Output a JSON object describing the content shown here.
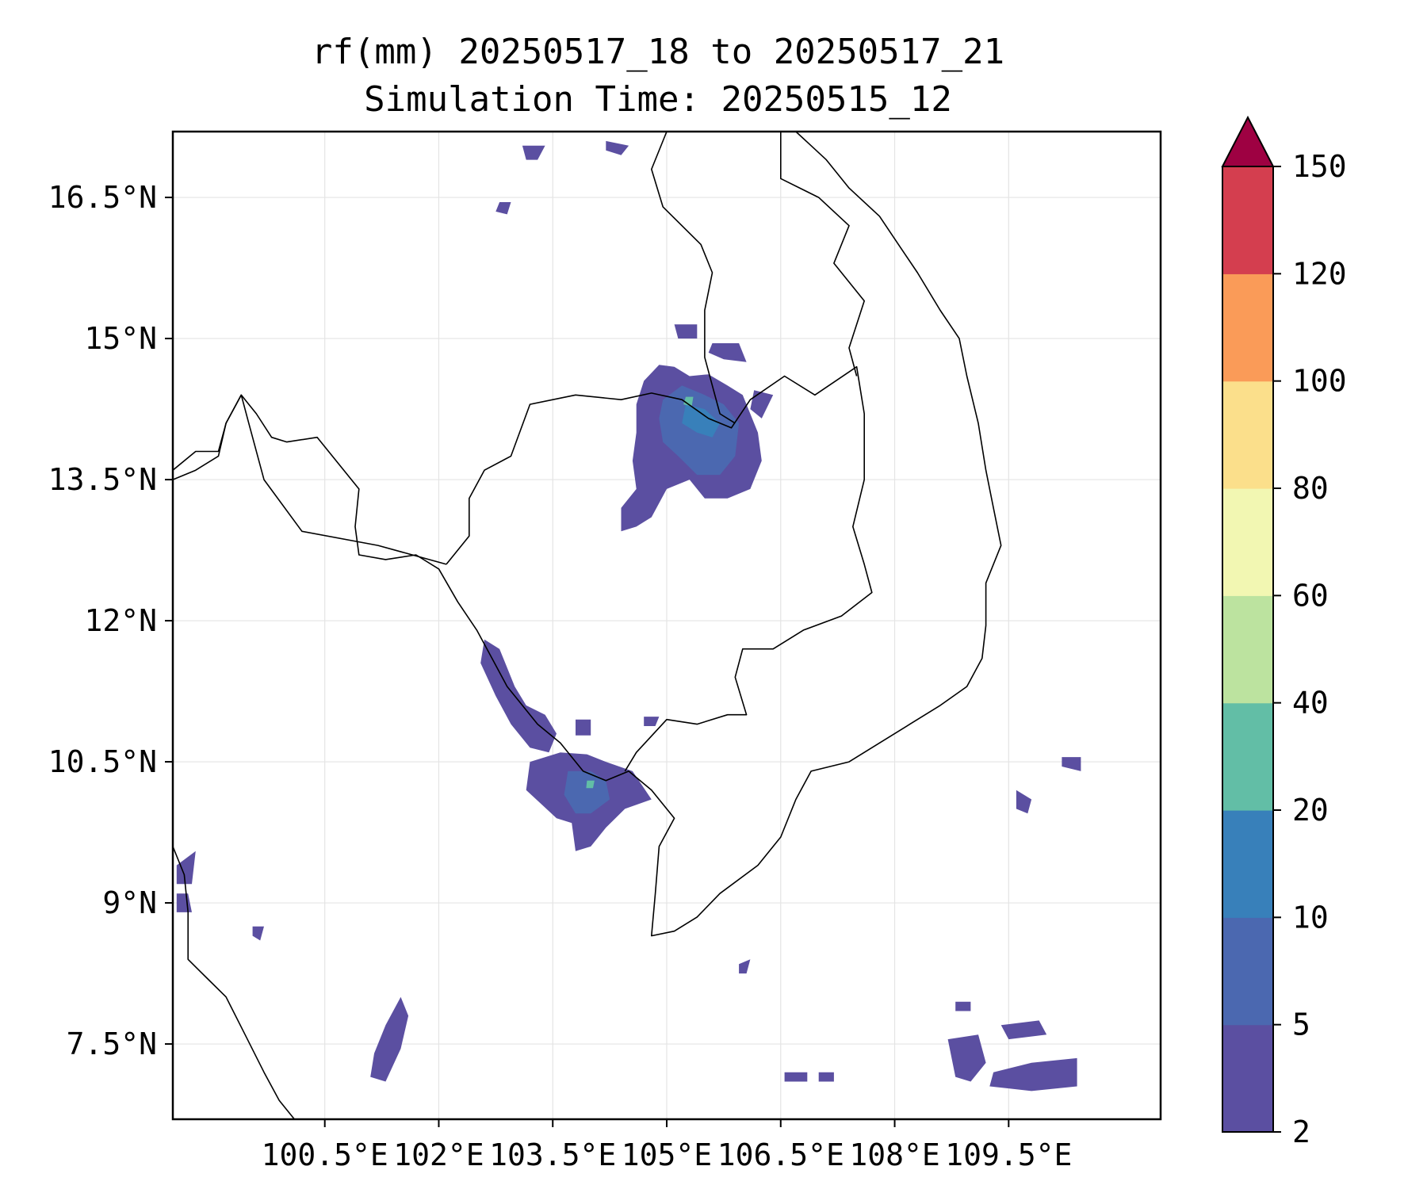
{
  "title": {
    "line1": "rf(mm) 20250517_18 to 20250517_21",
    "line2": "Simulation Time: 20250515_12"
  },
  "map": {
    "lon_range": [
      98.5,
      111.5
    ],
    "lat_range": [
      6.7,
      17.2
    ],
    "x_ticks": [
      {
        "value": 100.5,
        "label": "100.5°E"
      },
      {
        "value": 102.0,
        "label": "102°E"
      },
      {
        "value": 103.5,
        "label": "103.5°E"
      },
      {
        "value": 105.0,
        "label": "105°E"
      },
      {
        "value": 106.5,
        "label": "106.5°E"
      },
      {
        "value": 108.0,
        "label": "108°E"
      },
      {
        "value": 109.5,
        "label": "109.5°E"
      }
    ],
    "y_ticks": [
      {
        "value": 16.5,
        "label": "16.5°N"
      },
      {
        "value": 15.0,
        "label": "15°N"
      },
      {
        "value": 13.5,
        "label": "13.5°N"
      },
      {
        "value": 12.0,
        "label": "12°N"
      },
      {
        "value": 10.5,
        "label": "10.5°N"
      },
      {
        "value": 9.0,
        "label": "9°N"
      },
      {
        "value": 7.5,
        "label": "7.5°N"
      }
    ],
    "grid": true
  },
  "colorbar": {
    "levels": [
      {
        "value": 2,
        "label": "2"
      },
      {
        "value": 5,
        "label": "5"
      },
      {
        "value": 10,
        "label": "10"
      },
      {
        "value": 20,
        "label": "20"
      },
      {
        "value": 40,
        "label": "40"
      },
      {
        "value": 60,
        "label": "60"
      },
      {
        "value": 80,
        "label": "80"
      },
      {
        "value": 100,
        "label": "100"
      },
      {
        "value": 120,
        "label": "120"
      },
      {
        "value": 150,
        "label": "150"
      }
    ],
    "colors": [
      "#5b4fa1",
      "#4b68b0",
      "#3880ba",
      "#62bea6",
      "#bce39f",
      "#f2f7b2",
      "#fbdf8b",
      "#fa9b58",
      "#d43e4f"
    ],
    "extend_color": "#9e0142"
  },
  "rain_areas": [
    {
      "level": 0,
      "pts": [
        [
          104.7,
          14.55
        ],
        [
          104.9,
          14.72
        ],
        [
          105.1,
          14.7
        ],
        [
          105.3,
          14.6
        ],
        [
          105.55,
          14.62
        ],
        [
          105.8,
          14.5
        ],
        [
          106.0,
          14.4
        ],
        [
          106.2,
          14.0
        ],
        [
          106.25,
          13.7
        ],
        [
          106.1,
          13.4
        ],
        [
          105.8,
          13.3
        ],
        [
          105.5,
          13.3
        ],
        [
          105.3,
          13.5
        ],
        [
          105.0,
          13.4
        ],
        [
          104.8,
          13.1
        ],
        [
          104.6,
          13.0
        ],
        [
          104.4,
          12.95
        ],
        [
          104.4,
          13.2
        ],
        [
          104.6,
          13.4
        ],
        [
          104.55,
          13.7
        ],
        [
          104.6,
          14.0
        ],
        [
          104.6,
          14.3
        ]
      ]
    },
    {
      "level": 0,
      "pts": [
        [
          103.2,
          10.5
        ],
        [
          103.6,
          10.6
        ],
        [
          103.95,
          10.58
        ],
        [
          104.2,
          10.5
        ],
        [
          104.55,
          10.4
        ],
        [
          104.8,
          10.1
        ],
        [
          104.45,
          10.0
        ],
        [
          104.2,
          9.8
        ],
        [
          104.0,
          9.6
        ],
        [
          103.8,
          9.55
        ],
        [
          103.75,
          9.85
        ],
        [
          103.55,
          9.9
        ],
        [
          103.35,
          10.05
        ],
        [
          103.15,
          10.2
        ]
      ]
    },
    {
      "level": 0,
      "pts": [
        [
          102.6,
          11.8
        ],
        [
          102.8,
          11.7
        ],
        [
          103.0,
          11.3
        ],
        [
          103.15,
          11.1
        ],
        [
          103.4,
          11.0
        ],
        [
          103.55,
          10.8
        ],
        [
          103.45,
          10.6
        ],
        [
          103.2,
          10.65
        ],
        [
          102.95,
          10.9
        ],
        [
          102.75,
          11.2
        ],
        [
          102.55,
          11.55
        ]
      ]
    },
    {
      "level": 0,
      "pts": [
        [
          101.3,
          7.1
        ],
        [
          101.5,
          7.45
        ],
        [
          101.6,
          7.8
        ],
        [
          101.5,
          8.0
        ],
        [
          101.3,
          7.7
        ],
        [
          101.15,
          7.4
        ],
        [
          101.1,
          7.15
        ]
      ]
    },
    {
      "level": 0,
      "pts": [
        [
          108.7,
          7.55
        ],
        [
          109.1,
          7.6
        ],
        [
          109.2,
          7.3
        ],
        [
          109.0,
          7.1
        ],
        [
          108.8,
          7.15
        ]
      ]
    },
    {
      "level": 0,
      "pts": [
        [
          109.3,
          7.2
        ],
        [
          109.8,
          7.3
        ],
        [
          110.4,
          7.35
        ],
        [
          110.4,
          7.05
        ],
        [
          109.8,
          7.0
        ],
        [
          109.25,
          7.05
        ]
      ]
    },
    {
      "level": 0,
      "pts": [
        [
          109.4,
          7.7
        ],
        [
          109.9,
          7.75
        ],
        [
          110.0,
          7.6
        ],
        [
          109.5,
          7.55
        ]
      ]
    },
    {
      "level": 0,
      "pts": [
        [
          105.6,
          14.95
        ],
        [
          105.95,
          14.95
        ],
        [
          106.05,
          14.75
        ],
        [
          105.75,
          14.78
        ],
        [
          105.55,
          14.85
        ]
      ]
    },
    {
      "level": 0,
      "pts": [
        [
          105.1,
          15.15
        ],
        [
          105.4,
          15.15
        ],
        [
          105.4,
          15.0
        ],
        [
          105.15,
          15.0
        ]
      ]
    },
    {
      "level": 0,
      "pts": [
        [
          106.15,
          14.45
        ],
        [
          106.4,
          14.4
        ],
        [
          106.25,
          14.15
        ],
        [
          106.1,
          14.25
        ]
      ]
    },
    {
      "level": 0,
      "pts": [
        [
          98.55,
          9.4
        ],
        [
          98.8,
          9.55
        ],
        [
          98.75,
          9.2
        ],
        [
          98.55,
          9.2
        ]
      ]
    },
    {
      "level": 0,
      "pts": [
        [
          98.55,
          9.1
        ],
        [
          98.7,
          9.1
        ],
        [
          98.75,
          8.9
        ],
        [
          98.55,
          8.9
        ]
      ]
    },
    {
      "level": 0,
      "pts": [
        [
          110.2,
          10.55
        ],
        [
          110.45,
          10.55
        ],
        [
          110.45,
          10.4
        ],
        [
          110.2,
          10.45
        ]
      ]
    },
    {
      "level": 0,
      "pts": [
        [
          109.6,
          10.2
        ],
        [
          109.8,
          10.1
        ],
        [
          109.75,
          9.95
        ],
        [
          109.6,
          10.0
        ]
      ]
    },
    {
      "level": 0,
      "pts": [
        [
          103.1,
          17.05
        ],
        [
          103.4,
          17.05
        ],
        [
          103.3,
          16.9
        ],
        [
          103.15,
          16.9
        ]
      ]
    },
    {
      "level": 0,
      "pts": [
        [
          104.2,
          17.1
        ],
        [
          104.5,
          17.05
        ],
        [
          104.4,
          16.95
        ],
        [
          104.2,
          17.0
        ]
      ]
    },
    {
      "level": 0,
      "pts": [
        [
          102.8,
          16.45
        ],
        [
          102.95,
          16.45
        ],
        [
          102.9,
          16.32
        ],
        [
          102.75,
          16.35
        ]
      ]
    },
    {
      "level": 0,
      "pts": [
        [
          103.8,
          10.95
        ],
        [
          104.0,
          10.95
        ],
        [
          104.0,
          10.78
        ],
        [
          103.8,
          10.78
        ]
      ]
    },
    {
      "level": 0,
      "pts": [
        [
          104.7,
          10.98
        ],
        [
          104.9,
          10.98
        ],
        [
          104.85,
          10.88
        ],
        [
          104.7,
          10.88
        ]
      ]
    },
    {
      "level": 0,
      "pts": [
        [
          106.55,
          7.2
        ],
        [
          106.85,
          7.2
        ],
        [
          106.85,
          7.1
        ],
        [
          106.55,
          7.1
        ]
      ]
    },
    {
      "level": 0,
      "pts": [
        [
          107.0,
          7.2
        ],
        [
          107.2,
          7.2
        ],
        [
          107.2,
          7.1
        ],
        [
          107.0,
          7.1
        ]
      ]
    },
    {
      "level": 0,
      "pts": [
        [
          108.8,
          7.95
        ],
        [
          109.0,
          7.95
        ],
        [
          109.0,
          7.85
        ],
        [
          108.8,
          7.85
        ]
      ]
    },
    {
      "level": 0,
      "pts": [
        [
          105.95,
          8.35
        ],
        [
          106.1,
          8.4
        ],
        [
          106.05,
          8.25
        ],
        [
          105.95,
          8.25
        ]
      ]
    },
    {
      "level": 0,
      "pts": [
        [
          99.55,
          8.75
        ],
        [
          99.7,
          8.75
        ],
        [
          99.65,
          8.6
        ],
        [
          99.55,
          8.65
        ]
      ]
    },
    {
      "level": 1,
      "pts": [
        [
          104.95,
          14.35
        ],
        [
          105.2,
          14.5
        ],
        [
          105.5,
          14.4
        ],
        [
          105.75,
          14.3
        ],
        [
          105.95,
          14.1
        ],
        [
          105.9,
          13.75
        ],
        [
          105.7,
          13.55
        ],
        [
          105.4,
          13.55
        ],
        [
          105.15,
          13.75
        ],
        [
          104.95,
          13.9
        ],
        [
          104.9,
          14.15
        ]
      ]
    },
    {
      "level": 1,
      "pts": [
        [
          103.7,
          10.4
        ],
        [
          104.0,
          10.4
        ],
        [
          104.2,
          10.3
        ],
        [
          104.25,
          10.1
        ],
        [
          104.0,
          9.95
        ],
        [
          103.8,
          9.95
        ],
        [
          103.65,
          10.15
        ]
      ]
    },
    {
      "level": 2,
      "pts": [
        [
          105.25,
          14.3
        ],
        [
          105.5,
          14.25
        ],
        [
          105.7,
          14.1
        ],
        [
          105.6,
          13.95
        ],
        [
          105.4,
          14.0
        ],
        [
          105.2,
          14.1
        ]
      ]
    },
    {
      "level": 3,
      "pts": [
        [
          105.25,
          14.38
        ],
        [
          105.35,
          14.38
        ],
        [
          105.33,
          14.28
        ],
        [
          105.22,
          14.3
        ]
      ]
    },
    {
      "level": 3,
      "pts": [
        [
          103.95,
          10.3
        ],
        [
          104.05,
          10.3
        ],
        [
          104.03,
          10.22
        ],
        [
          103.94,
          10.22
        ]
      ]
    }
  ],
  "coastlines": [
    [
      [
        98.5,
        13.5
      ],
      [
        98.8,
        13.6
      ],
      [
        99.1,
        13.75
      ],
      [
        99.2,
        14.1
      ],
      [
        99.4,
        14.4
      ],
      [
        99.6,
        14.2
      ],
      [
        99.8,
        13.95
      ],
      [
        100.0,
        13.9
      ],
      [
        100.4,
        13.95
      ],
      [
        100.95,
        13.4
      ],
      [
        100.9,
        13.0
      ],
      [
        100.95,
        12.7
      ],
      [
        101.3,
        12.65
      ],
      [
        101.7,
        12.7
      ],
      [
        102.0,
        12.55
      ],
      [
        102.25,
        12.2
      ],
      [
        102.5,
        11.9
      ],
      [
        102.7,
        11.6
      ],
      [
        102.9,
        11.3
      ],
      [
        103.05,
        11.15
      ],
      [
        103.3,
        10.9
      ],
      [
        103.6,
        10.7
      ],
      [
        103.9,
        10.4
      ],
      [
        104.2,
        10.3
      ],
      [
        104.5,
        10.4
      ],
      [
        104.8,
        10.2
      ],
      [
        105.1,
        9.9
      ],
      [
        104.9,
        9.6
      ],
      [
        104.85,
        9.1
      ],
      [
        104.8,
        8.65
      ],
      [
        105.1,
        8.7
      ],
      [
        105.4,
        8.85
      ],
      [
        105.7,
        9.1
      ],
      [
        106.2,
        9.4
      ],
      [
        106.5,
        9.7
      ],
      [
        106.7,
        10.1
      ],
      [
        106.9,
        10.4
      ],
      [
        107.4,
        10.5
      ],
      [
        107.8,
        10.7
      ],
      [
        108.2,
        10.9
      ],
      [
        108.6,
        11.1
      ],
      [
        108.95,
        11.3
      ],
      [
        109.15,
        11.6
      ],
      [
        109.2,
        11.95
      ],
      [
        109.2,
        12.4
      ],
      [
        109.4,
        12.8
      ],
      [
        109.3,
        13.2
      ],
      [
        109.2,
        13.6
      ],
      [
        109.1,
        14.1
      ],
      [
        108.95,
        14.6
      ],
      [
        108.85,
        15.0
      ],
      [
        108.6,
        15.3
      ],
      [
        108.3,
        15.7
      ],
      [
        108.05,
        16.0
      ],
      [
        107.8,
        16.3
      ],
      [
        107.4,
        16.6
      ],
      [
        107.1,
        16.9
      ],
      [
        106.7,
        17.2
      ]
    ],
    [
      [
        98.5,
        9.6
      ],
      [
        98.65,
        9.3
      ],
      [
        98.7,
        8.9
      ],
      [
        98.7,
        8.4
      ],
      [
        98.95,
        8.2
      ],
      [
        99.2,
        8.0
      ],
      [
        99.45,
        7.6
      ],
      [
        99.7,
        7.2
      ],
      [
        99.9,
        6.9
      ],
      [
        100.1,
        6.7
      ]
    ]
  ],
  "borders": [
    [
      [
        102.1,
        12.6
      ],
      [
        102.4,
        12.9
      ],
      [
        102.4,
        13.3
      ],
      [
        102.6,
        13.6
      ],
      [
        102.95,
        13.75
      ],
      [
        103.2,
        14.3
      ],
      [
        103.8,
        14.4
      ],
      [
        104.4,
        14.35
      ],
      [
        104.8,
        14.42
      ],
      [
        105.2,
        14.35
      ],
      [
        105.55,
        14.15
      ],
      [
        105.85,
        14.05
      ],
      [
        106.1,
        14.35
      ],
      [
        106.55,
        14.6
      ],
      [
        106.95,
        14.4
      ],
      [
        107.5,
        14.7
      ],
      [
        107.6,
        14.2
      ],
      [
        107.6,
        13.5
      ],
      [
        107.45,
        13.0
      ],
      [
        107.6,
        12.6
      ],
      [
        107.7,
        12.3
      ],
      [
        107.3,
        12.05
      ],
      [
        106.8,
        11.9
      ],
      [
        106.4,
        11.7
      ],
      [
        106.0,
        11.7
      ],
      [
        105.9,
        11.4
      ],
      [
        106.05,
        11.0
      ],
      [
        105.8,
        11.0
      ],
      [
        105.4,
        10.9
      ],
      [
        105.0,
        10.95
      ],
      [
        104.6,
        10.6
      ],
      [
        104.45,
        10.4
      ]
    ],
    [
      [
        105.0,
        17.2
      ],
      [
        104.8,
        16.8
      ],
      [
        104.95,
        16.4
      ],
      [
        105.45,
        16.0
      ],
      [
        105.6,
        15.7
      ],
      [
        105.5,
        15.3
      ],
      [
        105.5,
        14.8
      ],
      [
        105.6,
        14.5
      ],
      [
        105.7,
        14.2
      ],
      [
        105.9,
        14.1
      ]
    ],
    [
      [
        106.5,
        17.2
      ],
      [
        106.5,
        16.7
      ],
      [
        107.0,
        16.5
      ],
      [
        107.4,
        16.2
      ],
      [
        107.2,
        15.8
      ],
      [
        107.6,
        15.4
      ],
      [
        107.4,
        14.9
      ],
      [
        107.5,
        14.6
      ]
    ],
    [
      [
        98.5,
        13.6
      ],
      [
        98.8,
        13.8
      ],
      [
        99.1,
        13.8
      ],
      [
        99.2,
        14.1
      ],
      [
        99.4,
        14.4
      ],
      [
        99.5,
        14.1
      ],
      [
        99.7,
        13.5
      ],
      [
        100.2,
        12.95
      ],
      [
        101.2,
        12.8
      ],
      [
        102.1,
        12.6
      ]
    ]
  ]
}
